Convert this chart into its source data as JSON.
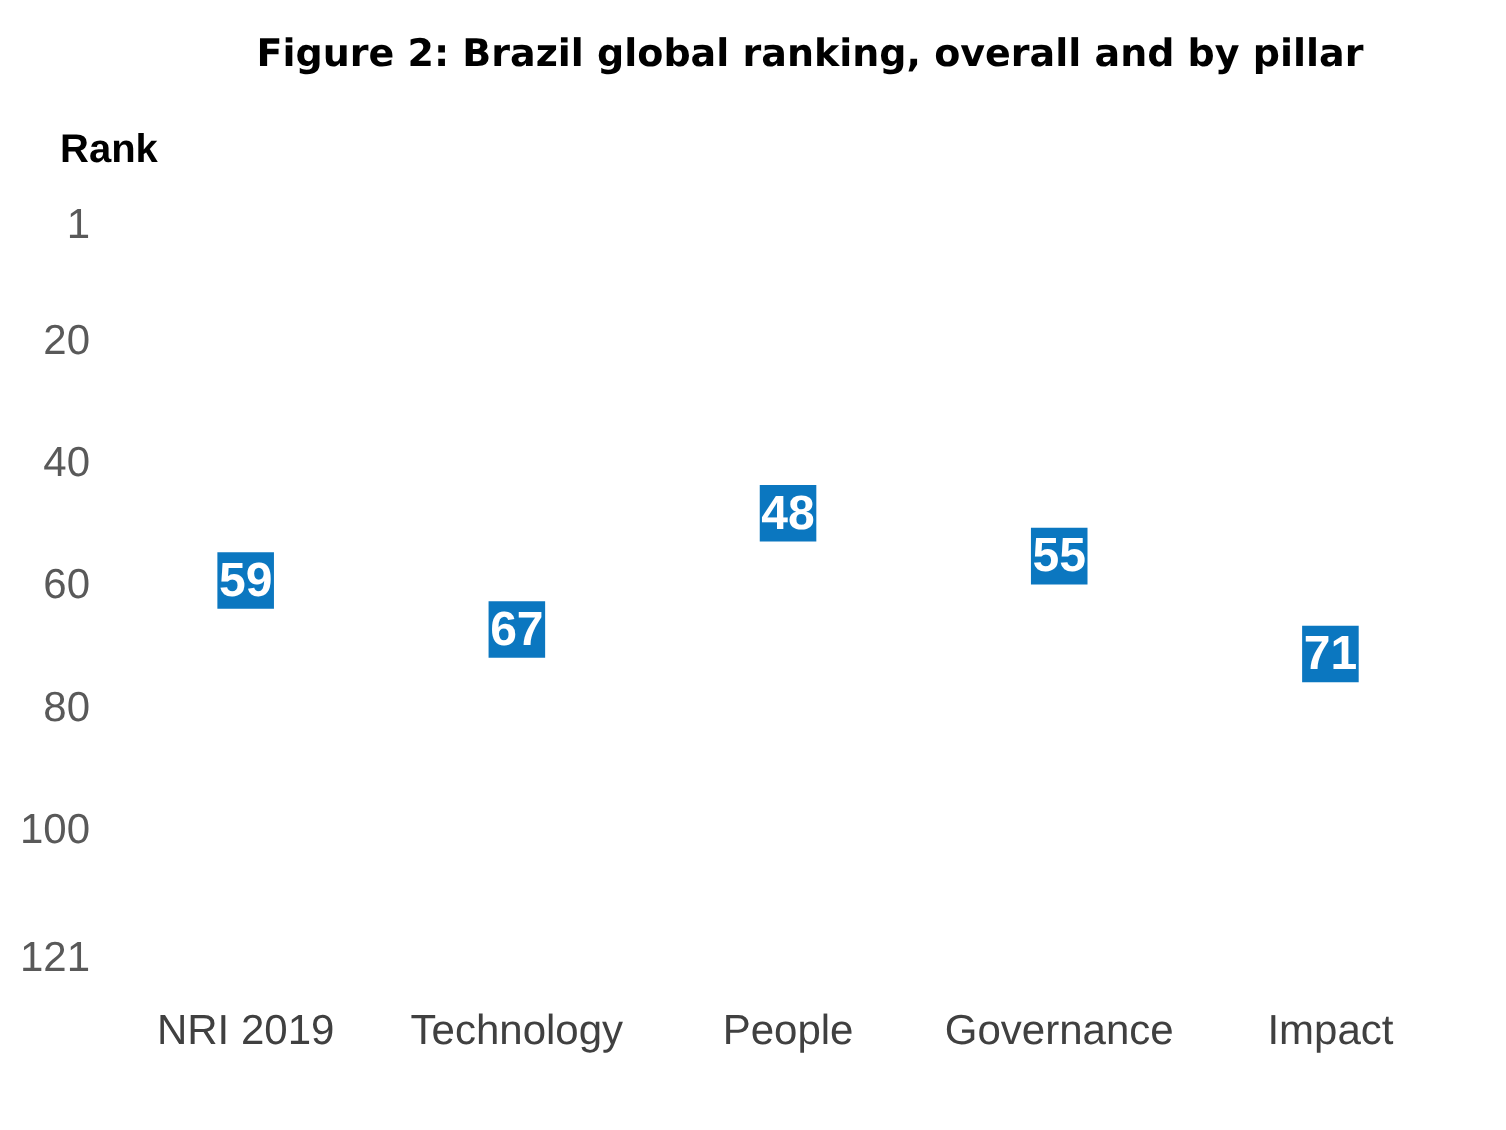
{
  "chart_data": {
    "type": "scatter",
    "title": "Figure 2: Brazil global ranking, overall and by pillar",
    "ylabel": "Rank",
    "categories": [
      "NRI 2019",
      "Technology",
      "People",
      "Governance",
      "Impact"
    ],
    "values": [
      59,
      67,
      48,
      55,
      71
    ],
    "color": "#0b77c0",
    "ylim": [
      121,
      1
    ],
    "yticks": [
      1,
      20,
      40,
      60,
      80,
      100,
      121
    ],
    "grid": false,
    "legend": false,
    "marker": "square",
    "data_labels": true
  }
}
